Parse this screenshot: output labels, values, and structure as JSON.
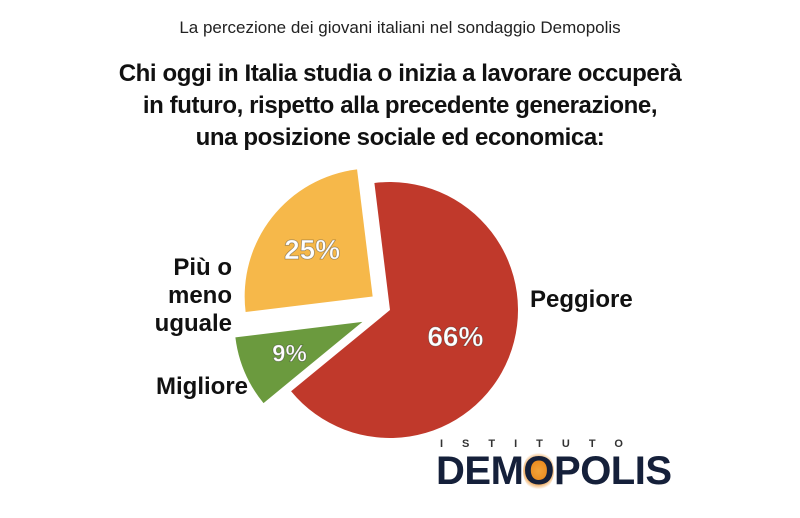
{
  "header": {
    "subtitle": "La percezione dei giovani italiani nel sondaggio Demopolis",
    "title_lines": [
      "Chi oggi in Italia studia o inizia a lavorare occuperà",
      "in futuro, rispetto alla precedente generazione,",
      "una posizione sociale ed economica:"
    ]
  },
  "chart_data": {
    "type": "pie",
    "title": "Chi oggi in Italia studia o inizia a lavorare occuperà in futuro, rispetto alla precedente generazione, una posizione sociale ed economica:",
    "slices": [
      {
        "label": "Peggiore",
        "value": 66,
        "value_label": "66%",
        "color": "#c0392b"
      },
      {
        "label": "Migliore",
        "value": 9,
        "value_label": "9%",
        "color": "#6b9a3e"
      },
      {
        "label": "Più o meno uguale",
        "value": 25,
        "value_label": "25%",
        "color": "#f6b84a"
      }
    ]
  },
  "labels": {
    "peggiore": "Peggiore",
    "migliore": "Migliore",
    "uguale_line1": "Più o meno",
    "uguale_line2": "uguale"
  },
  "logo": {
    "top": "ISTITUTO",
    "main_1": "DEM",
    "main_o": "O",
    "main_2": "POLIS"
  }
}
